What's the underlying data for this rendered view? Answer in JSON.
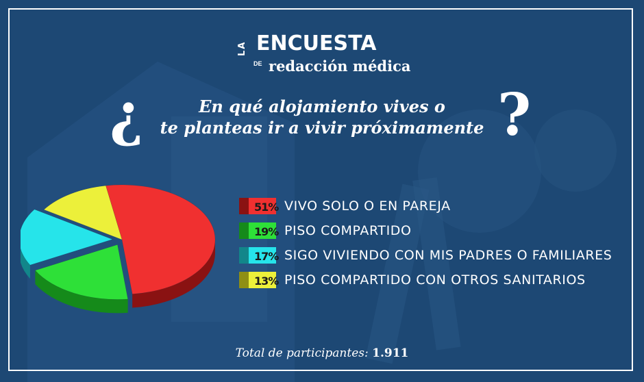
{
  "brand": {
    "la": "LA",
    "name": "ENCUESTA",
    "de": "DE",
    "sub": "redacción médica"
  },
  "question": {
    "open_mark": "¿",
    "close_mark": "?",
    "line1": "En qué alojamiento vives o",
    "line2": "te planteas ir a vivir próximamente"
  },
  "chart_data": {
    "type": "pie",
    "title": "¿En qué alojamiento vives o te planteas ir a vivir próximamente?",
    "categories": [
      "VIVO SOLO O EN PAREJA",
      "PISO COMPARTIDO",
      "SIGO VIVIENDO CON MIS PADRES O FAMILIARES",
      "PISO COMPARTIDO CON OTROS SANITARIOS"
    ],
    "values": [
      51,
      19,
      17,
      13
    ],
    "pct_labels": [
      "51%",
      "19%",
      "17%",
      "13%"
    ],
    "colors": [
      "#f03030",
      "#2ee038",
      "#26e4ea",
      "#ecf03a"
    ],
    "dark_colors": [
      "#8a1212",
      "#158a1a",
      "#12868a",
      "#8f8f14"
    ],
    "legend_position": "right",
    "exploded_slices": [
      "PISO COMPARTIDO",
      "SIGO VIVIENDO CON MIS PADRES O FAMILIARES"
    ]
  },
  "total": {
    "label": "Total de participantes:",
    "value": "1.911"
  }
}
